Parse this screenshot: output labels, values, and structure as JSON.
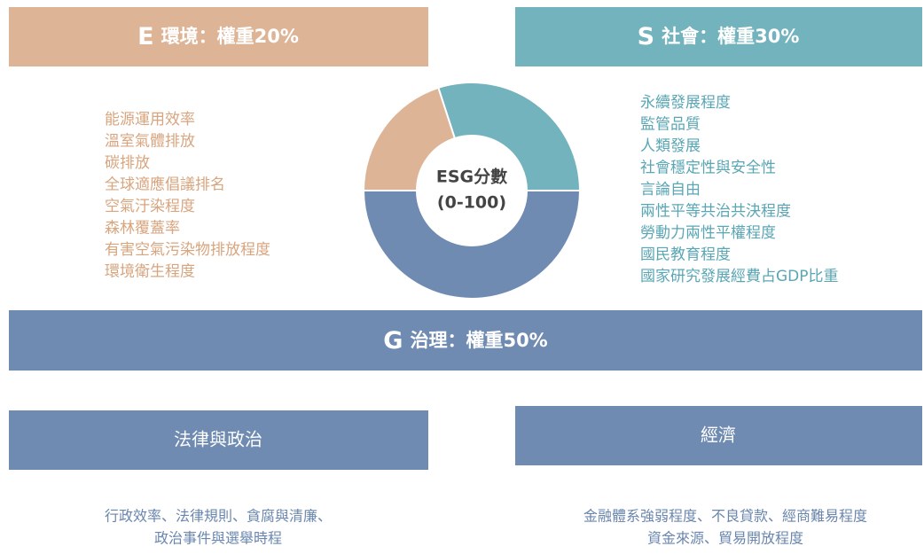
{
  "center": {
    "line1": "ESG分數",
    "line2": "(0-100)"
  },
  "sections": [
    {
      "letter": "E",
      "name": "環境",
      "weight_label": "：權重20%",
      "weight": 20,
      "color": "#ddb496",
      "items": [
        "能源運用效率",
        "溫室氣體排放",
        "碳排放",
        "全球適應倡議排名",
        "空氣汙染程度",
        "森林覆蓋率",
        "有害空氣污染物排放程度",
        "環境衛生程度"
      ]
    },
    {
      "letter": "S",
      "name": "社會",
      "weight_label": "：權重30%",
      "weight": 30,
      "color": "#72b3bd",
      "items": [
        "永續發展程度",
        "監管品質",
        "人類發展",
        "社會穩定性與安全性",
        "言論自由",
        "兩性平等共治共決程度",
        "勞動力兩性平權程度",
        "國民教育程度",
        "國家研究發展經費占GDP比重"
      ]
    },
    {
      "letter": "G",
      "name": "治理",
      "weight_label": "：權重50%",
      "weight": 50,
      "color": "#6f8bb1",
      "subgroups": [
        {
          "title": "法律與政治",
          "lines": [
            "行政效率、法律規則、貪腐與清廉、",
            "政治事件與選舉時程"
          ]
        },
        {
          "title": "經濟",
          "lines": [
            "金融體系強弱程度、不良貸款、經商難易程度",
            "資金來源、貿易開放程度"
          ]
        }
      ]
    }
  ]
}
